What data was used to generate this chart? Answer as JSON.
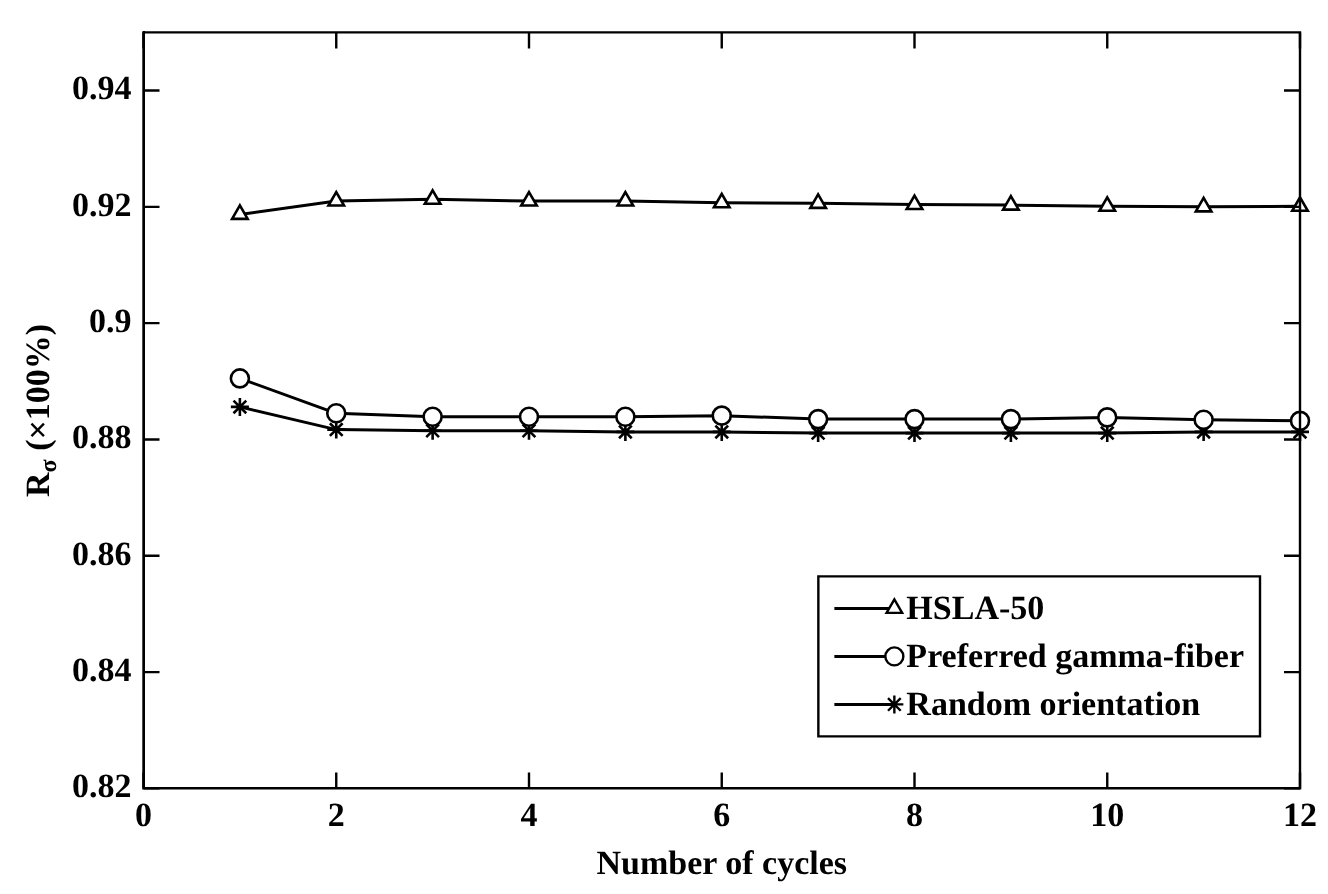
{
  "chart_data": {
    "type": "line",
    "xlabel": "Number of cycles",
    "ylabel": "R$_{σ}$ (×100%)",
    "x": [
      1,
      2,
      3,
      4,
      5,
      6,
      7,
      8,
      9,
      10,
      11,
      12
    ],
    "xlim": [
      0,
      12
    ],
    "xticks": [
      0,
      2,
      4,
      6,
      8,
      10,
      12
    ],
    "ylim": [
      0.82,
      0.95
    ],
    "yticks": [
      0.82,
      0.84,
      0.86,
      0.88,
      0.9,
      0.92,
      0.94
    ],
    "grid": false,
    "legend": "bottom right",
    "line_style": "solid",
    "series": [
      {
        "name": "HSLA-50",
        "color": "#000000",
        "marker": "triangle",
        "values": [
          0.9187,
          0.921,
          0.9213,
          0.921,
          0.921,
          0.9207,
          0.9206,
          0.9204,
          0.9203,
          0.9201,
          0.92,
          0.9201
        ]
      },
      {
        "name": "Preferred gamma-fiber",
        "color": "#000000",
        "marker": "circle",
        "values": [
          0.8905,
          0.8845,
          0.8839,
          0.8839,
          0.8839,
          0.8841,
          0.8835,
          0.8835,
          0.8835,
          0.8838,
          0.8834,
          0.8832
        ]
      },
      {
        "name": "Random orientation",
        "color": "#000000",
        "marker": "cross",
        "values": [
          0.8856,
          0.8817,
          0.8815,
          0.8815,
          0.8813,
          0.8813,
          0.8811,
          0.8811,
          0.8811,
          0.8811,
          0.8813,
          0.8813
        ]
      }
    ]
  }
}
